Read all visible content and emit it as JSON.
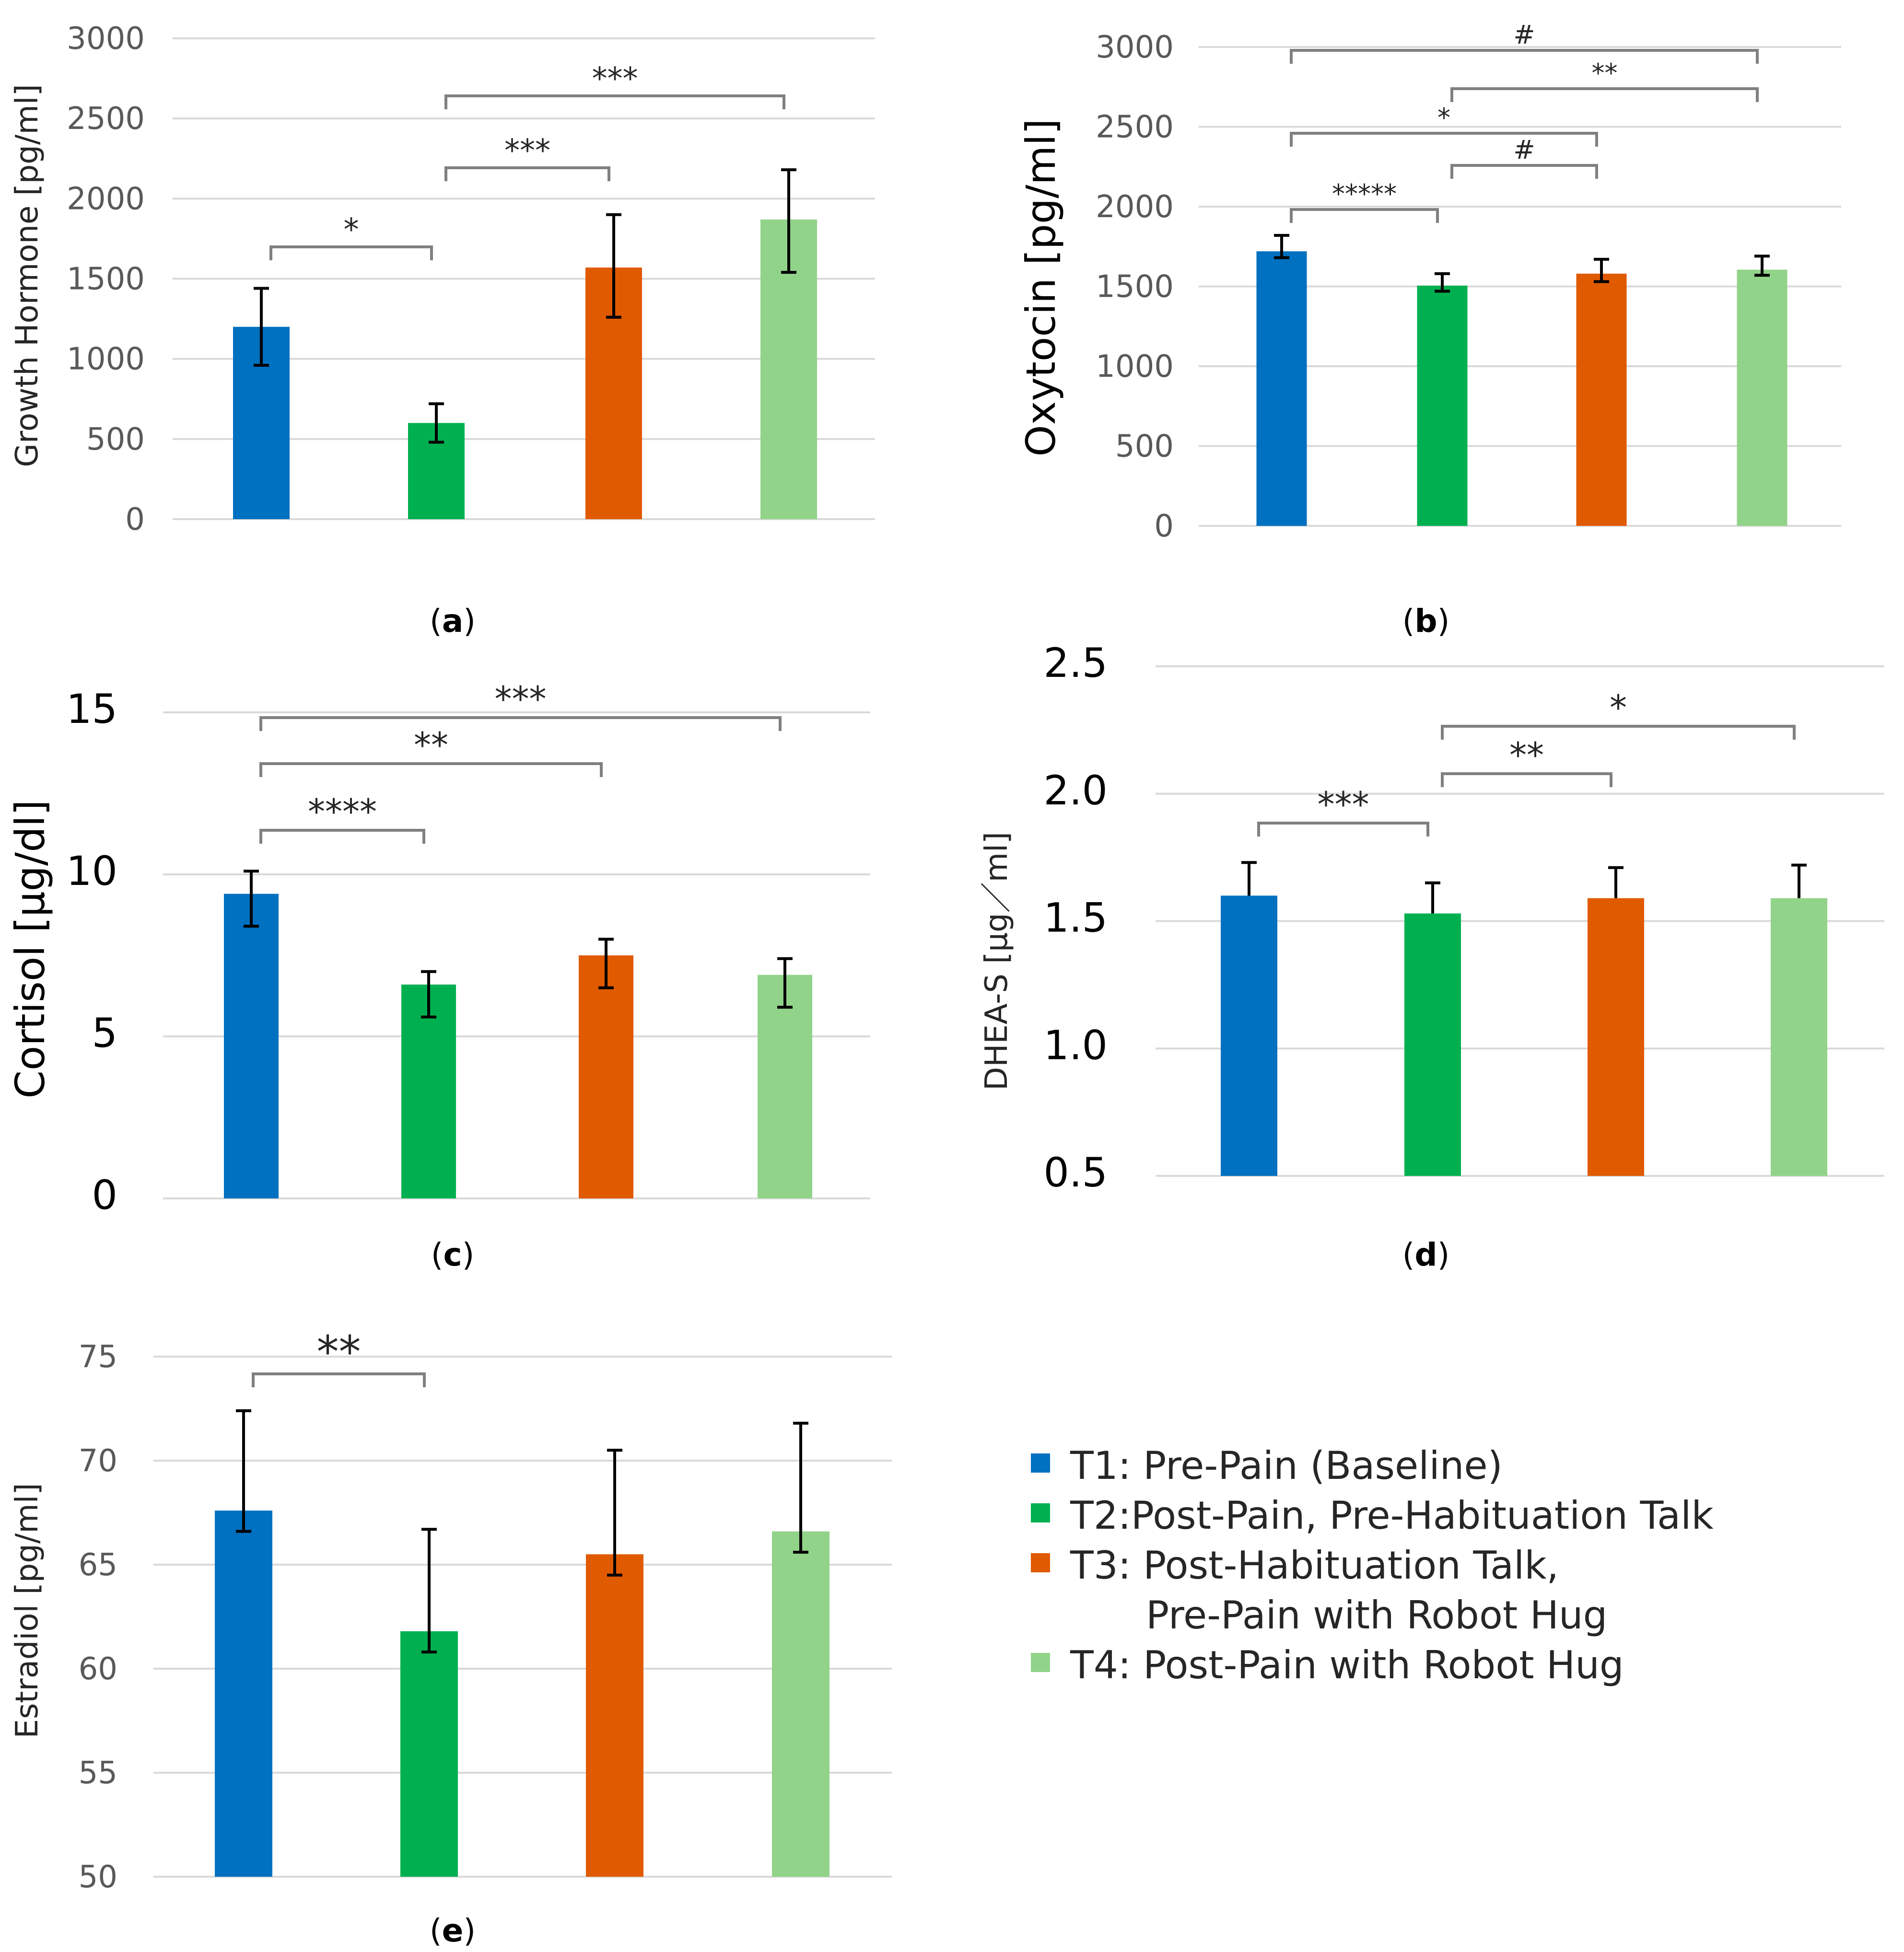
{
  "legend": {
    "items": [
      {
        "label": "T1: Pre-Pain (Baseline)",
        "color": "#0070C0"
      },
      {
        "label": "T2:Post-Pain, Pre-Habituation Talk",
        "color": "#00B050"
      },
      {
        "label": "T3: Post-Habituation Talk,",
        "label_cont": "Pre-Pain with Robot Hug",
        "color": "#E05A00"
      },
      {
        "label": "T4: Post-Pain with Robot Hug",
        "color": "#92D38A"
      }
    ]
  },
  "chart_data": [
    {
      "type": "bar",
      "panel": "(a)",
      "caption_letter": "a",
      "ylabel": "Growth Hormone [pg/ml]",
      "ylim": [
        0,
        3000
      ],
      "yticks": [
        0,
        500,
        1000,
        1500,
        2000,
        2500,
        3000
      ],
      "tick_labels": [
        "0",
        "500",
        "1000",
        "1500",
        "2000",
        "2500",
        "3000"
      ],
      "categories": [
        "T1",
        "T2",
        "T3",
        "T4"
      ],
      "values": [
        1200,
        600,
        1570,
        1870
      ],
      "error_low": [
        960,
        480,
        1260,
        1540
      ],
      "error_high": [
        1440,
        720,
        1900,
        2180
      ],
      "significance": [
        {
          "from": 0,
          "to": 1,
          "label": "*"
        },
        {
          "from": 1,
          "to": 2,
          "label": "***"
        },
        {
          "from": 1,
          "to": 3,
          "label": "***"
        }
      ]
    },
    {
      "type": "bar",
      "panel": "(b)",
      "caption_letter": "b",
      "ylabel": "Oxytocin [pg/ml]",
      "ylim": [
        0,
        3000
      ],
      "yticks": [
        0,
        500,
        1000,
        1500,
        2000,
        2500,
        3000
      ],
      "tick_labels": [
        "0",
        "500",
        "1000",
        "1500",
        "2000",
        "2500",
        "3000"
      ],
      "categories": [
        "T1",
        "T2",
        "T3",
        "T4"
      ],
      "values": [
        1720,
        1505,
        1580,
        1605
      ],
      "error_low": [
        1680,
        1470,
        1530,
        1570
      ],
      "error_high": [
        1820,
        1580,
        1670,
        1690
      ],
      "significance": [
        {
          "from": 0,
          "to": 1,
          "label": "*****"
        },
        {
          "from": 1,
          "to": 2,
          "label": "#"
        },
        {
          "from": 0,
          "to": 2,
          "label": "*"
        },
        {
          "from": 1,
          "to": 3,
          "label": "**"
        },
        {
          "from": 0,
          "to": 3,
          "label": "#"
        }
      ]
    },
    {
      "type": "bar",
      "panel": "(c)",
      "caption_letter": "c",
      "ylabel": "Cortisol [μg/dl]",
      "ylim": [
        0,
        15
      ],
      "yticks": [
        0,
        5,
        10,
        15
      ],
      "tick_labels": [
        "0",
        "5",
        "10",
        "15"
      ],
      "categories": [
        "T1",
        "T2",
        "T3",
        "T4"
      ],
      "values": [
        9.4,
        6.6,
        7.5,
        6.9
      ],
      "error_low": [
        8.4,
        5.6,
        6.5,
        5.9
      ],
      "error_high": [
        10.1,
        7.0,
        8.0,
        7.4
      ],
      "significance": [
        {
          "from": 0,
          "to": 1,
          "label": "****"
        },
        {
          "from": 0,
          "to": 2,
          "label": "**"
        },
        {
          "from": 0,
          "to": 3,
          "label": "***"
        }
      ]
    },
    {
      "type": "bar",
      "panel": "(d)",
      "caption_letter": "d",
      "ylabel": "DHEA-S [μg／ml]",
      "ylim": [
        0.5,
        2.5
      ],
      "yticks": [
        0.5,
        1.0,
        1.5,
        2.0,
        2.5
      ],
      "tick_labels": [
        "0.5",
        "1.0",
        "1.5",
        "2.0",
        "2.5"
      ],
      "categories": [
        "T1",
        "T2",
        "T3",
        "T4"
      ],
      "values": [
        1.6,
        1.53,
        1.59,
        1.59
      ],
      "error_low": [
        1.6,
        1.53,
        1.59,
        1.59
      ],
      "error_high": [
        1.73,
        1.65,
        1.71,
        1.72
      ],
      "significance": [
        {
          "from": 0,
          "to": 1,
          "label": "***"
        },
        {
          "from": 1,
          "to": 2,
          "label": "**"
        },
        {
          "from": 1,
          "to": 3,
          "label": "*"
        }
      ]
    },
    {
      "type": "bar",
      "panel": "(e)",
      "caption_letter": "e",
      "ylabel": "Estradiol [pg/ml]",
      "ylim": [
        50,
        75
      ],
      "yticks": [
        50,
        55,
        60,
        65,
        70,
        75
      ],
      "tick_labels": [
        "50",
        "55",
        "60",
        "65",
        "70",
        "75"
      ],
      "categories": [
        "T1",
        "T2",
        "T3",
        "T4"
      ],
      "values": [
        67.6,
        61.8,
        65.5,
        66.6
      ],
      "error_low": [
        66.6,
        60.8,
        64.5,
        65.6
      ],
      "error_high": [
        72.4,
        66.7,
        70.5,
        71.8
      ],
      "significance": [
        {
          "from": 0,
          "to": 1,
          "label": "**"
        }
      ]
    }
  ]
}
